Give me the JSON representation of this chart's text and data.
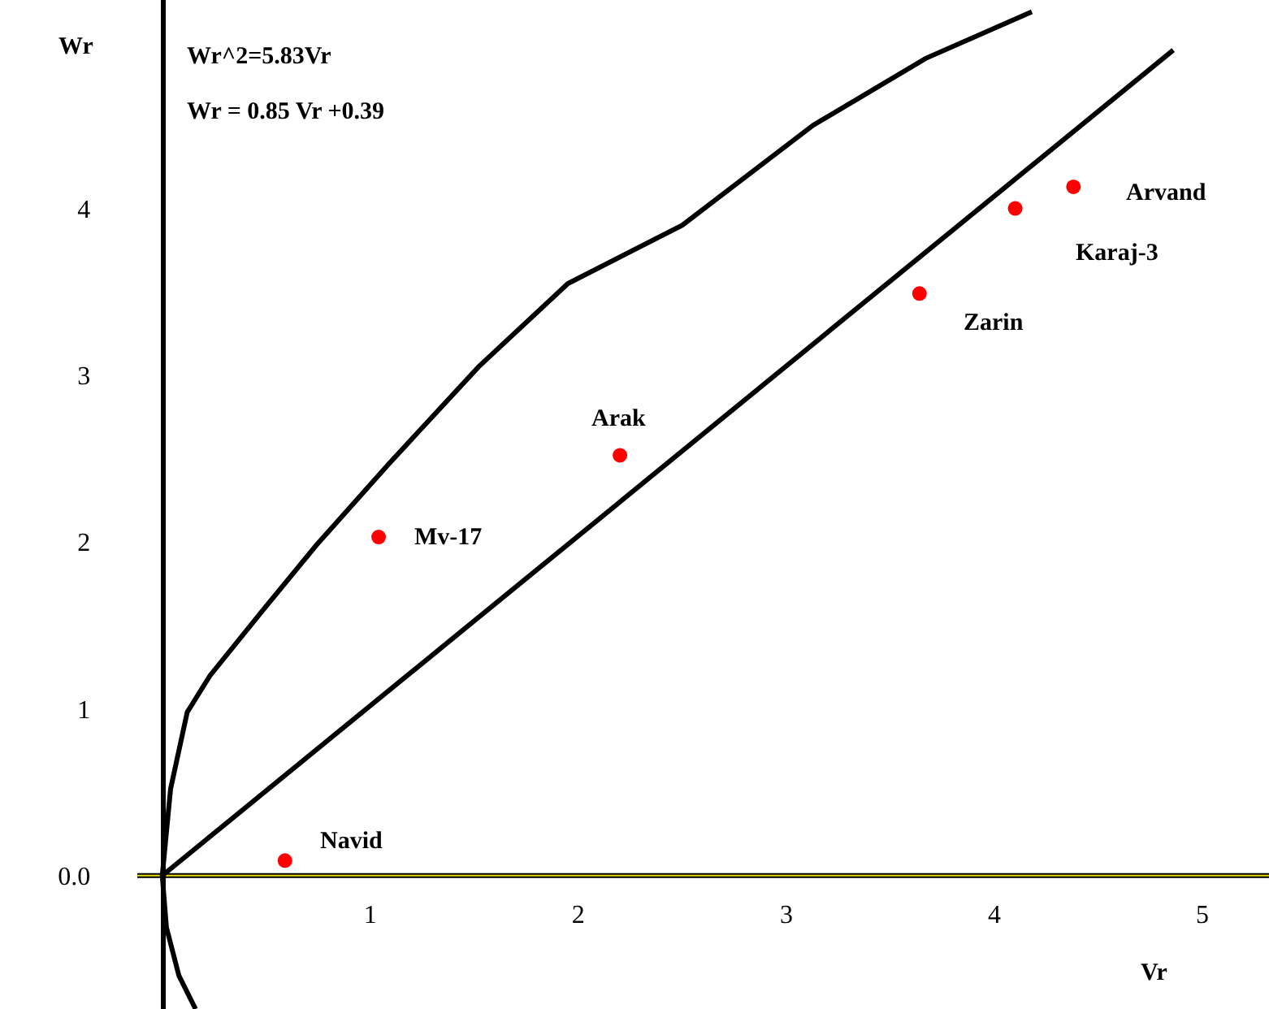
{
  "chart_data": {
    "type": "scatter",
    "xlabel": "Vr",
    "ylabel": "Wr",
    "xlim": [
      -0.78,
      5.32
    ],
    "ylim": [
      -0.8,
      5.25
    ],
    "xticks": [
      1,
      2,
      3,
      4,
      5
    ],
    "yticks": [
      {
        "value": 0,
        "label": "0.0"
      },
      1,
      2,
      3,
      4
    ],
    "grid": false,
    "ref_lines": [
      {
        "axis": "y",
        "value": 0,
        "color": "#e8e000"
      }
    ],
    "series": [
      {
        "type": "line",
        "color": "#000000",
        "x": [
          0.16,
          0.08,
          0.02,
          0,
          0.04,
          0.12,
          0.23,
          0.47,
          0.74,
          1.09,
          1.52,
          1.95,
          2.5,
          3.13,
          3.67,
          4.18
        ],
        "values": [
          -0.8,
          -0.6,
          -0.31,
          0,
          0.52,
          0.98,
          1.2,
          1.57,
          1.98,
          2.47,
          3.05,
          3.55,
          3.9,
          4.5,
          4.9,
          5.18
        ]
      },
      {
        "type": "line",
        "color": "#000000",
        "x": [
          0,
          4.86
        ],
        "values": [
          0,
          4.95
        ]
      },
      {
        "marker": "circle",
        "color": "#ff0000",
        "x": [
          0.59,
          1.04,
          2.2,
          3.64,
          4.1,
          4.38
        ],
        "values": [
          0.09,
          2.03,
          2.52,
          3.49,
          4.0,
          4.13
        ]
      }
    ],
    "annotations": [
      "Wr^2=5.83Vr",
      "Wr = 0.85 Vr +0.39",
      {
        "text": "Navid",
        "x": 0.59,
        "y": 0.09
      },
      {
        "text": "Mv-17",
        "x": 1.04,
        "y": 2.03
      },
      {
        "text": "Arak",
        "x": 2.2,
        "y": 2.52
      },
      {
        "text": "Zarin",
        "x": 3.64,
        "y": 3.49
      },
      {
        "text": "Karaj-3",
        "x": 4.1,
        "y": 4.0
      },
      {
        "text": "Arvand",
        "x": 4.38,
        "y": 4.13
      }
    ]
  }
}
